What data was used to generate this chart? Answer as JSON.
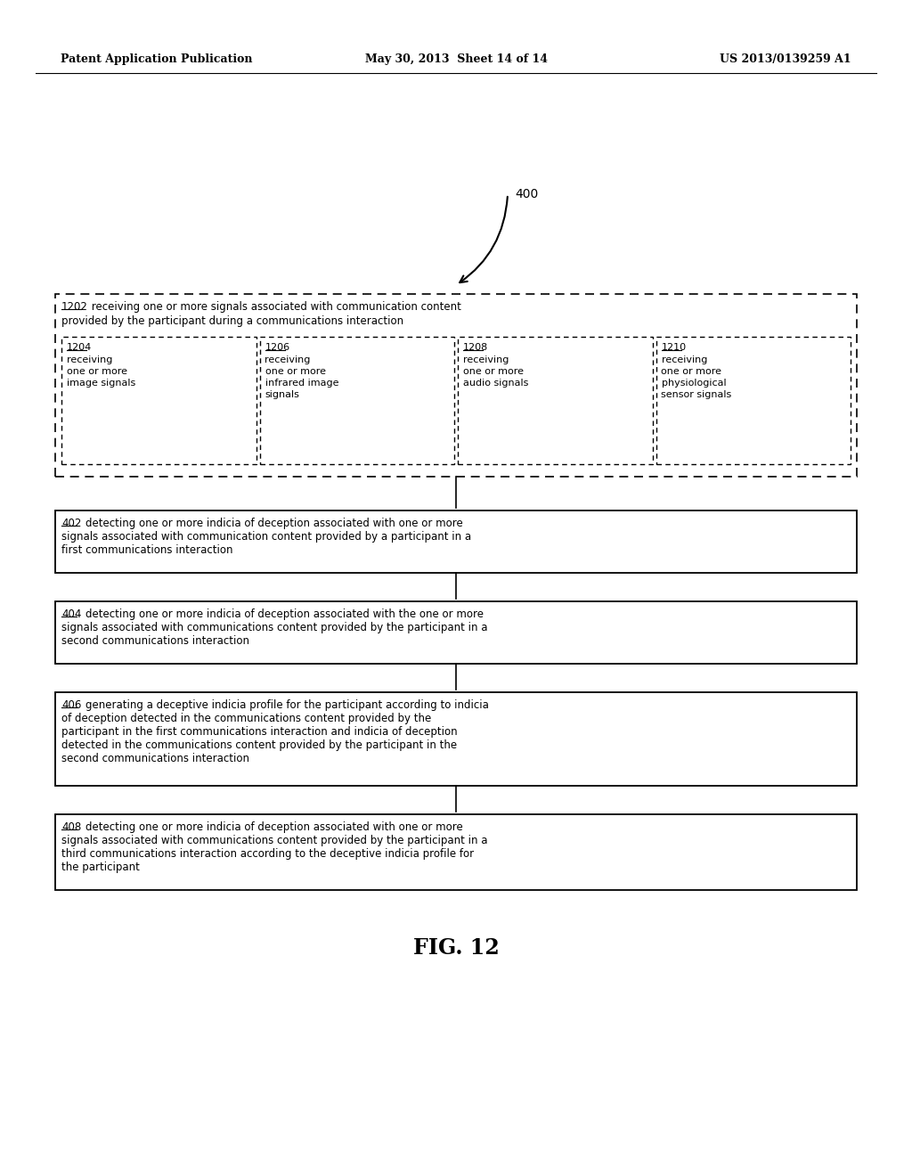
{
  "bg_color": "#ffffff",
  "header_left": "Patent Application Publication",
  "header_mid": "May 30, 2013  Sheet 14 of 14",
  "header_right": "US 2013/0139259 A1",
  "fig_label": "FIG. 12",
  "ref_400": "400",
  "box1_label": "1202",
  "box1_line1": " receiving one or more signals associated with communication content",
  "box1_line2": "provided by the participant during a communications interaction",
  "sub1_label": "1204",
  "sub1_lines": [
    "receiving",
    "one or more",
    "image signals"
  ],
  "sub2_label": "1206",
  "sub2_lines": [
    "receiving",
    "one or more",
    "infrared image",
    "signals"
  ],
  "sub3_label": "1208",
  "sub3_lines": [
    "receiving",
    "one or more",
    "audio signals"
  ],
  "sub4_label": "1210",
  "sub4_lines": [
    "receiving",
    "one or more",
    "physiological",
    "sensor signals"
  ],
  "box2_label": "402",
  "box2_lines": [
    "detecting one or more indicia of deception associated with one or more",
    "signals associated with communication content provided by a participant in a",
    "first communications interaction"
  ],
  "box3_label": "404",
  "box3_lines": [
    "detecting one or more indicia of deception associated with the one or more",
    "signals associated with communications content provided by the participant in a",
    "second communications interaction"
  ],
  "box4_label": "406",
  "box4_lines": [
    "generating a deceptive indicia profile for the participant according to indicia",
    "of deception detected in the communications content provided by the",
    "participant in the first communications interaction and indicia of deception",
    "detected in the communications content provided by the participant in the",
    "second communications interaction"
  ],
  "box5_label": "408",
  "box5_lines": [
    "detecting one or more indicia of deception associated with one or more",
    "signals associated with communications content provided by the participant in a",
    "third communications interaction according to the deceptive indicia profile for",
    "the participant"
  ]
}
